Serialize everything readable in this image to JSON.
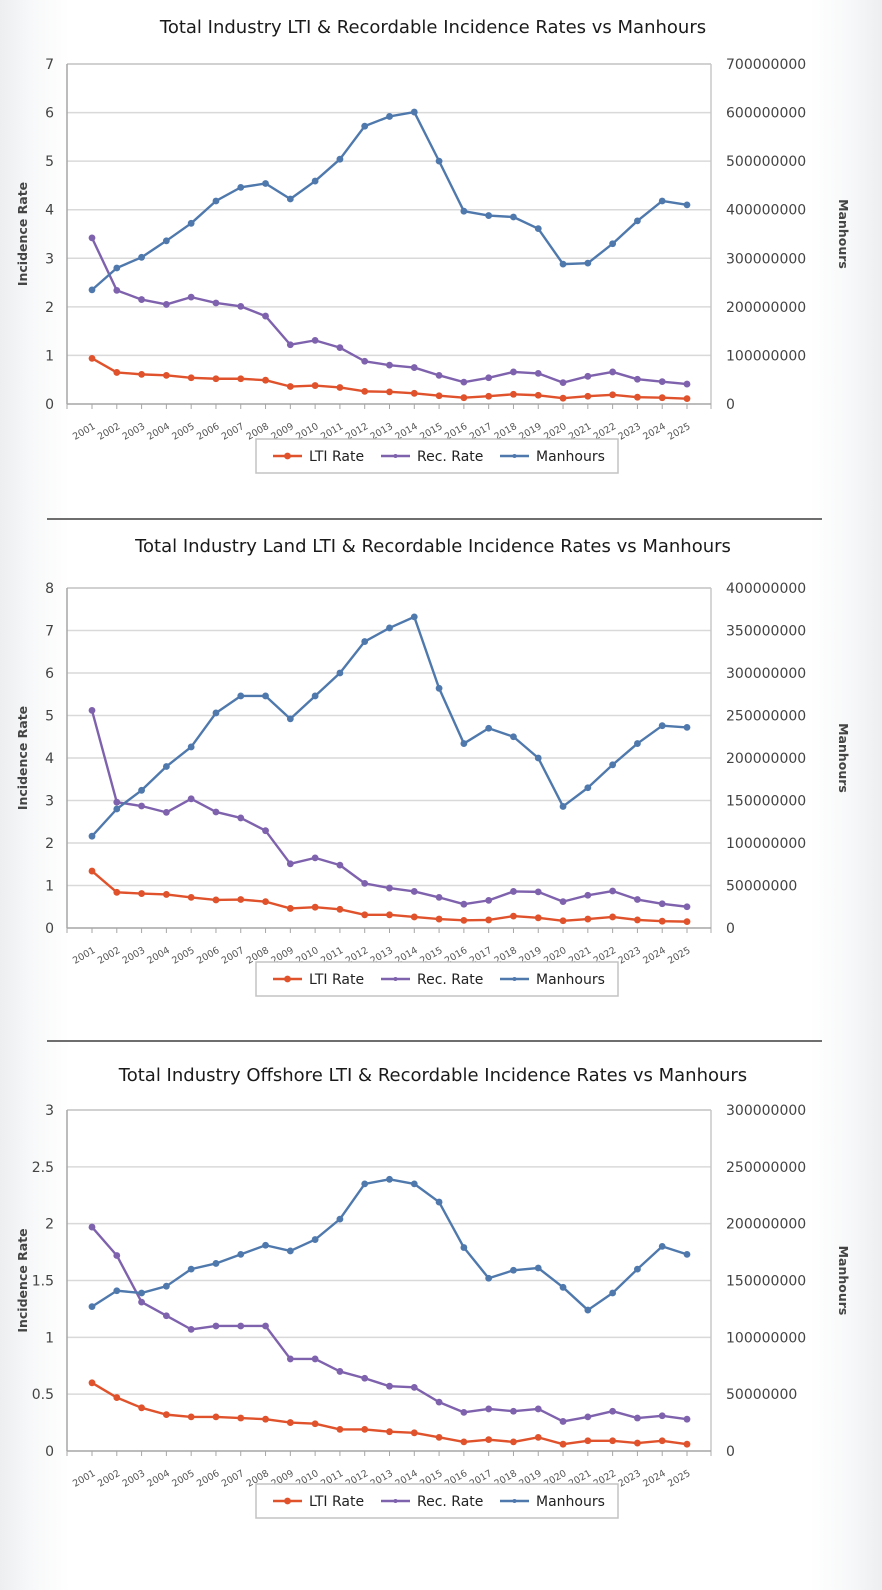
{
  "colors": {
    "lti": "#e0522b",
    "rec": "#7f62ad",
    "manhours": "#4f79ad",
    "grid": "#d9d9d9",
    "axis": "#a6a6a6"
  },
  "legend": {
    "lti": "LTI Rate",
    "rec": "Rec. Rate",
    "manhours": "Manhours"
  },
  "chart_data": [
    {
      "type": "line",
      "title": "Total Industry LTI & Recordable Incidence Rates vs Manhours",
      "xlabel": "",
      "ylabel": "Incidence Rate",
      "y2label": "Manhours",
      "ylim": [
        0,
        7
      ],
      "y2lim": [
        0,
        700000000
      ],
      "yticks": [
        "0",
        "1",
        "2",
        "3",
        "4",
        "5",
        "6",
        "7"
      ],
      "y2ticks": [
        "0",
        "100000000",
        "200000000",
        "300000000",
        "400000000",
        "500000000",
        "600000000",
        "700000000"
      ],
      "grid": true,
      "legend_position": "bottom",
      "categories": [
        "2001",
        "2002",
        "2003",
        "2004",
        "2005",
        "2006",
        "2007",
        "2008",
        "2009",
        "2010",
        "2011",
        "2012",
        "2013",
        "2014",
        "2015",
        "2016",
        "2017",
        "2018",
        "2019",
        "2020",
        "2021",
        "2022",
        "2023",
        "2024",
        "2025"
      ],
      "series": [
        {
          "name": "LTI Rate",
          "axis": "left",
          "values": [
            0.94,
            0.65,
            0.61,
            0.59,
            0.54,
            0.52,
            0.52,
            0.49,
            0.36,
            0.38,
            0.34,
            0.26,
            0.25,
            0.22,
            0.17,
            0.13,
            0.16,
            0.2,
            0.18,
            0.12,
            0.16,
            0.19,
            0.14,
            0.13,
            0.11
          ]
        },
        {
          "name": "Rec. Rate",
          "axis": "left",
          "values": [
            3.42,
            2.34,
            2.15,
            2.05,
            2.2,
            2.08,
            2.01,
            1.81,
            1.22,
            1.31,
            1.16,
            0.88,
            0.8,
            0.75,
            0.59,
            0.45,
            0.54,
            0.66,
            0.63,
            0.44,
            0.57,
            0.66,
            0.51,
            0.46,
            0.41
          ]
        },
        {
          "name": "Manhours",
          "axis": "right",
          "values": [
            235000000,
            280000000,
            302000000,
            336000000,
            372000000,
            418000000,
            446000000,
            454000000,
            422000000,
            459000000,
            504000000,
            572000000,
            592000000,
            601000000,
            500000000,
            397000000,
            388000000,
            385000000,
            361000000,
            288000000,
            290000000,
            330000000,
            377000000,
            418000000,
            410000000
          ]
        }
      ]
    },
    {
      "type": "line",
      "title": "Total Industry Land LTI & Recordable Incidence Rates vs Manhours",
      "xlabel": "",
      "ylabel": "Incidence Rate",
      "y2label": "Manhours",
      "ylim": [
        0,
        8
      ],
      "y2lim": [
        0,
        400000000
      ],
      "yticks": [
        "0",
        "1",
        "2",
        "3",
        "4",
        "5",
        "6",
        "7",
        "8"
      ],
      "y2ticks": [
        "0",
        "50000000",
        "100000000",
        "150000000",
        "200000000",
        "250000000",
        "300000000",
        "350000000",
        "400000000"
      ],
      "grid": true,
      "legend_position": "bottom",
      "categories": [
        "2001",
        "2002",
        "2003",
        "2004",
        "2005",
        "2006",
        "2007",
        "2008",
        "2009",
        "2010",
        "2011",
        "2012",
        "2013",
        "2014",
        "2015",
        "2016",
        "2017",
        "2018",
        "2019",
        "2020",
        "2021",
        "2022",
        "2023",
        "2024",
        "2025"
      ],
      "series": [
        {
          "name": "LTI Rate",
          "axis": "left",
          "values": [
            1.34,
            0.84,
            0.81,
            0.79,
            0.72,
            0.66,
            0.67,
            0.62,
            0.46,
            0.49,
            0.44,
            0.31,
            0.31,
            0.26,
            0.21,
            0.18,
            0.19,
            0.28,
            0.24,
            0.17,
            0.21,
            0.26,
            0.19,
            0.16,
            0.15
          ]
        },
        {
          "name": "Rec. Rate",
          "axis": "left",
          "values": [
            5.12,
            2.96,
            2.87,
            2.72,
            3.04,
            2.73,
            2.59,
            2.29,
            1.51,
            1.65,
            1.48,
            1.05,
            0.94,
            0.86,
            0.72,
            0.56,
            0.65,
            0.86,
            0.85,
            0.62,
            0.77,
            0.87,
            0.67,
            0.57,
            0.5
          ]
        },
        {
          "name": "Manhours",
          "axis": "right",
          "values": [
            108000000,
            140000000,
            162000000,
            190000000,
            213000000,
            253000000,
            273000000,
            273000000,
            246000000,
            273000000,
            300000000,
            337000000,
            353000000,
            366000000,
            282000000,
            217000000,
            235000000,
            225000000,
            200000000,
            143000000,
            165000000,
            192000000,
            217000000,
            238000000,
            236000000
          ]
        }
      ]
    },
    {
      "type": "line",
      "title": "Total Industry Offshore LTI & Recordable Incidence Rates vs Manhours",
      "xlabel": "",
      "ylabel": "Incidence Rate",
      "y2label": "Manhours",
      "ylim": [
        0,
        3
      ],
      "y2lim": [
        0,
        300000000
      ],
      "yticks": [
        "0",
        "0.5",
        "1",
        "1.5",
        "2",
        "2.5",
        "3"
      ],
      "y2ticks": [
        "0",
        "50000000",
        "100000000",
        "150000000",
        "200000000",
        "250000000",
        "300000000"
      ],
      "grid": true,
      "legend_position": "bottom",
      "categories": [
        "2001",
        "2002",
        "2003",
        "2004",
        "2005",
        "2006",
        "2007",
        "2008",
        "2009",
        "2010",
        "2011",
        "2012",
        "2013",
        "2014",
        "2015",
        "2016",
        "2017",
        "2018",
        "2019",
        "2020",
        "2021",
        "2022",
        "2023",
        "2024",
        "2025"
      ],
      "series": [
        {
          "name": "LTI Rate",
          "axis": "left",
          "values": [
            0.6,
            0.47,
            0.38,
            0.32,
            0.3,
            0.3,
            0.29,
            0.28,
            0.25,
            0.24,
            0.19,
            0.19,
            0.17,
            0.16,
            0.12,
            0.08,
            0.1,
            0.08,
            0.12,
            0.06,
            0.09,
            0.09,
            0.07,
            0.09,
            0.06
          ]
        },
        {
          "name": "Rec. Rate",
          "axis": "left",
          "values": [
            1.97,
            1.72,
            1.31,
            1.19,
            1.07,
            1.1,
            1.1,
            1.1,
            0.81,
            0.81,
            0.7,
            0.64,
            0.57,
            0.56,
            0.43,
            0.34,
            0.37,
            0.35,
            0.37,
            0.26,
            0.3,
            0.35,
            0.29,
            0.31,
            0.28
          ]
        },
        {
          "name": "Manhours",
          "axis": "right",
          "values": [
            127000000,
            141000000,
            139000000,
            145000000,
            160000000,
            165000000,
            173000000,
            181000000,
            176000000,
            186000000,
            204000000,
            235000000,
            239000000,
            235000000,
            219000000,
            179000000,
            152000000,
            159000000,
            161000000,
            144000000,
            124000000,
            139000000,
            160000000,
            180000000,
            173000000
          ]
        }
      ]
    }
  ]
}
